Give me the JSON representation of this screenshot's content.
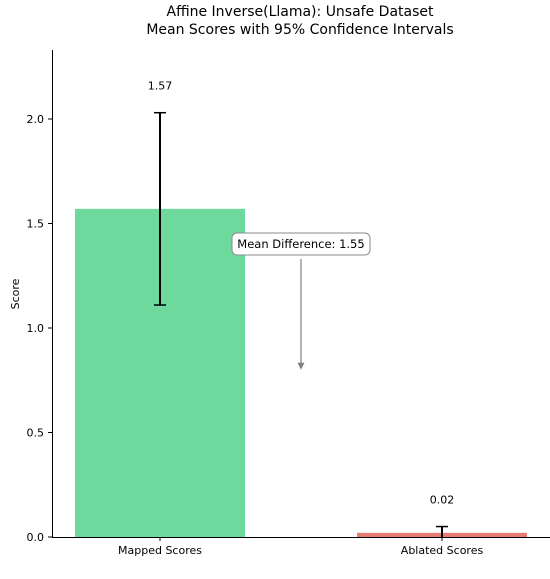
{
  "chart_data": {
    "type": "bar",
    "title": [
      "Affine Inverse(Llama): Unsafe Dataset",
      "Mean Scores with 95% Confidence Intervals"
    ],
    "ylabel": "Score",
    "xlabel": "",
    "categories": [
      "Mapped Scores",
      "Ablated Scores"
    ],
    "values": [
      1.57,
      0.02
    ],
    "value_labels": [
      "1.57",
      "0.02"
    ],
    "ci_lower": [
      1.11,
      0.0
    ],
    "ci_upper": [
      2.03,
      0.05
    ],
    "colors": [
      "#6ed99c",
      "#e57d70"
    ],
    "ylim": [
      0,
      2.33
    ],
    "yticks": [
      0.0,
      0.5,
      1.0,
      1.5,
      2.0
    ],
    "ytick_labels": [
      "0.0",
      "0.5",
      "1.0",
      "1.5",
      "2.0"
    ],
    "grid": false,
    "annotation": {
      "text": "Mean Difference: 1.55",
      "arrow_from_value": 1.33,
      "arrow_to_value": 0.8,
      "arrow_color": "#808080"
    }
  }
}
